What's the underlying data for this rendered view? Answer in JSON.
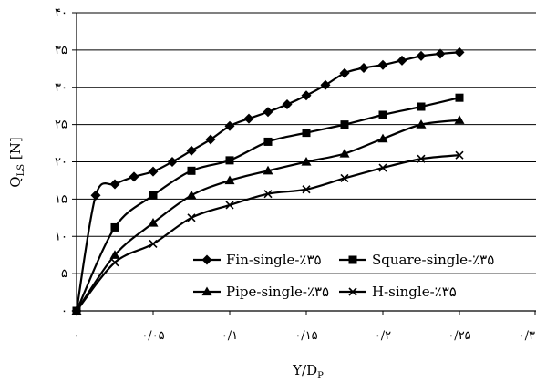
{
  "chart_data": {
    "type": "line",
    "title": "",
    "xlabel": "Y/D",
    "xlabel_sub": "P",
    "ylabel": "Q",
    "ylabel_sub": "LS",
    "ylabel_unit": " [N]",
    "xlim": [
      0,
      0.3
    ],
    "ylim": [
      0,
      40
    ],
    "grid": "horizontal",
    "legend_placement": "bottom-right",
    "x_ticks": [
      {
        "value": 0,
        "label": "۰"
      },
      {
        "value": 0.05,
        "label": "۰/۰۵"
      },
      {
        "value": 0.1,
        "label": "۰/۱"
      },
      {
        "value": 0.15,
        "label": "۰/۱۵"
      },
      {
        "value": 0.2,
        "label": "۰/۲"
      },
      {
        "value": 0.25,
        "label": "۰/۲۵"
      },
      {
        "value": 0.3,
        "label": "۰/۳"
      }
    ],
    "y_ticks": [
      {
        "value": 0,
        "label": "۰"
      },
      {
        "value": 5,
        "label": "۵"
      },
      {
        "value": 10,
        "label": "۱۰"
      },
      {
        "value": 15,
        "label": "۱۵"
      },
      {
        "value": 20,
        "label": "۲۰"
      },
      {
        "value": 25,
        "label": "۲۵"
      },
      {
        "value": 30,
        "label": "۳۰"
      },
      {
        "value": 35,
        "label": "۳۵"
      },
      {
        "value": 40,
        "label": "۴۰"
      }
    ],
    "series": [
      {
        "name": "Fin-single-٪۳۵",
        "marker": "diamond",
        "x": [
          0,
          0.0125,
          0.025,
          0.0375,
          0.05,
          0.0625,
          0.075,
          0.0875,
          0.1,
          0.1125,
          0.125,
          0.1375,
          0.15,
          0.1625,
          0.175,
          0.1875,
          0.2,
          0.2125,
          0.225,
          0.2375,
          0.25
        ],
        "y": [
          0,
          15.5,
          17.0,
          18.0,
          18.7,
          20.0,
          21.5,
          23.0,
          24.8,
          25.8,
          26.7,
          27.7,
          28.9,
          30.3,
          31.9,
          32.6,
          33.0,
          33.6,
          34.2,
          34.5,
          34.7
        ]
      },
      {
        "name": "Square-single-٪۳۵",
        "marker": "square",
        "x": [
          0,
          0.025,
          0.05,
          0.075,
          0.1,
          0.125,
          0.15,
          0.175,
          0.2,
          0.225,
          0.25
        ],
        "y": [
          0,
          11.2,
          15.5,
          18.8,
          20.2,
          22.7,
          23.9,
          25.0,
          26.3,
          27.4,
          28.6
        ]
      },
      {
        "name": "Pipe-single-٪۳۵",
        "marker": "triangle",
        "x": [
          0,
          0.025,
          0.05,
          0.075,
          0.1,
          0.125,
          0.15,
          0.175,
          0.2,
          0.225,
          0.25
        ],
        "y": [
          0,
          7.5,
          11.8,
          15.5,
          17.5,
          18.8,
          20.0,
          21.1,
          23.1,
          25.0,
          25.6
        ]
      },
      {
        "name": "H-single-٪۳۵",
        "marker": "x",
        "x": [
          0,
          0.025,
          0.05,
          0.075,
          0.1,
          0.125,
          0.15,
          0.175,
          0.2,
          0.225,
          0.25
        ],
        "y": [
          0,
          6.5,
          9.0,
          12.5,
          14.2,
          15.7,
          16.3,
          17.8,
          19.2,
          20.4,
          20.9
        ]
      }
    ]
  }
}
